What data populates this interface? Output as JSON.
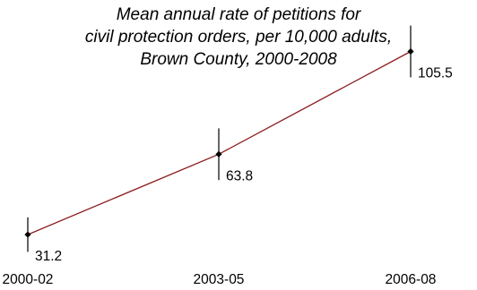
{
  "chart_data": {
    "type": "line",
    "title_lines": [
      "Mean annual rate of petitions for",
      "civil protection orders, per 10,000 adults,",
      "Brown County, 2000-2008"
    ],
    "categories": [
      "2000-02",
      "2003-05",
      "2006-08"
    ],
    "values": [
      31.2,
      63.8,
      105.5
    ],
    "data_labels": [
      "31.2",
      "63.8",
      "105.5"
    ],
    "error_bars": [
      [
        24.2,
        38.2
      ],
      [
        53.3,
        74.3
      ],
      [
        95.0,
        116.0
      ]
    ],
    "line_color": "#8b1a1a",
    "marker": "diamond",
    "ylim": [
      0,
      130
    ],
    "grid": false,
    "legend": "none"
  }
}
